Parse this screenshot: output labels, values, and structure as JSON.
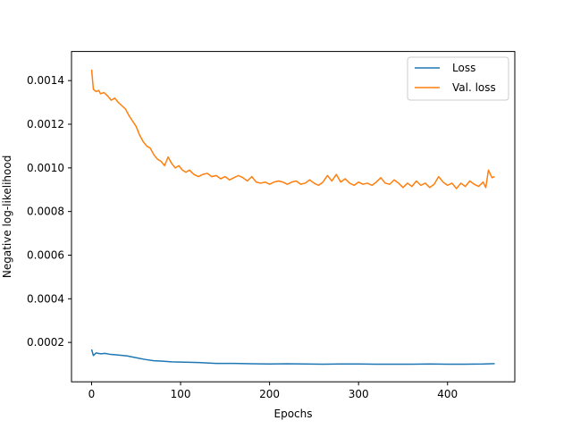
{
  "chart_data": {
    "type": "line",
    "title": "",
    "xlabel": "Epochs",
    "ylabel": "Negative log-likelihood",
    "xlim": [
      -22.6,
      475.6
    ],
    "ylim": [
      1.95e-05,
      0.0015335
    ],
    "xticks": [
      0,
      100,
      200,
      300,
      400
    ],
    "yticks": [
      0.0002,
      0.0004,
      0.0006,
      0.0008,
      0.001,
      0.0012,
      0.0014
    ],
    "ytick_labels": [
      "0.0002",
      "0.0004",
      "0.0006",
      "0.0008",
      "0.0010",
      "0.0012",
      "0.0014"
    ],
    "grid": false,
    "legend_position": "top-right",
    "series": [
      {
        "name": "Loss",
        "color": "#1f77b4",
        "x": [
          0,
          2,
          5,
          10,
          15,
          20,
          30,
          40,
          50,
          60,
          70,
          80,
          90,
          100,
          120,
          140,
          160,
          180,
          200,
          220,
          240,
          260,
          280,
          300,
          320,
          340,
          360,
          380,
          400,
          420,
          440,
          453
        ],
        "y": [
          0.000168,
          0.00014,
          0.000152,
          0.000148,
          0.00015,
          0.000146,
          0.000142,
          0.000138,
          0.00013,
          0.000122,
          0.000116,
          0.000114,
          0.000111,
          0.00011,
          0.000108,
          0.000104,
          0.000104,
          0.000102,
          0.000101,
          0.000102,
          0.000101,
          0.0001,
          0.000101,
          0.000101,
          0.0001,
          0.0001,
          0.0001,
          0.000101,
          0.0001,
          0.0001,
          0.000101,
          0.000103
        ]
      },
      {
        "name": "Val. loss",
        "color": "#ff7f0e",
        "x": [
          0,
          2,
          5,
          8,
          10,
          14,
          18,
          22,
          26,
          30,
          34,
          38,
          42,
          46,
          50,
          54,
          58,
          62,
          66,
          70,
          74,
          78,
          82,
          86,
          90,
          94,
          98,
          102,
          106,
          110,
          115,
          120,
          125,
          130,
          135,
          140,
          145,
          150,
          155,
          160,
          165,
          170,
          175,
          180,
          185,
          190,
          195,
          200,
          205,
          210,
          215,
          220,
          225,
          230,
          235,
          240,
          245,
          250,
          255,
          260,
          265,
          270,
          275,
          280,
          285,
          290,
          295,
          300,
          305,
          310,
          315,
          320,
          325,
          330,
          335,
          340,
          345,
          350,
          355,
          360,
          365,
          370,
          375,
          380,
          385,
          390,
          395,
          400,
          405,
          410,
          415,
          420,
          425,
          430,
          435,
          440,
          443,
          446,
          450,
          453
        ],
        "y": [
          0.00145,
          0.00136,
          0.00135,
          0.001355,
          0.00134,
          0.001345,
          0.00133,
          0.00131,
          0.00132,
          0.0013,
          0.001285,
          0.00127,
          0.00124,
          0.001215,
          0.00119,
          0.00115,
          0.00112,
          0.0011,
          0.00109,
          0.00106,
          0.00104,
          0.00103,
          0.00101,
          0.00105,
          0.00102,
          0.001,
          0.00101,
          0.00099,
          0.00098,
          0.00099,
          0.00097,
          0.00096,
          0.00097,
          0.000975,
          0.00096,
          0.000965,
          0.00095,
          0.00096,
          0.000945,
          0.000955,
          0.000965,
          0.000955,
          0.00094,
          0.00096,
          0.000935,
          0.00093,
          0.000935,
          0.000925,
          0.000935,
          0.00094,
          0.000935,
          0.000925,
          0.000935,
          0.00094,
          0.000925,
          0.00093,
          0.000945,
          0.00093,
          0.00092,
          0.000935,
          0.000965,
          0.00094,
          0.00097,
          0.000935,
          0.00095,
          0.00093,
          0.00092,
          0.000935,
          0.000925,
          0.00093,
          0.00092,
          0.000935,
          0.000955,
          0.00093,
          0.000925,
          0.000945,
          0.00093,
          0.00091,
          0.00093,
          0.000915,
          0.00094,
          0.00092,
          0.00093,
          0.00091,
          0.000925,
          0.00096,
          0.000935,
          0.00092,
          0.00093,
          0.000905,
          0.00093,
          0.000915,
          0.00094,
          0.000925,
          0.000915,
          0.000935,
          0.00091,
          0.00099,
          0.000955,
          0.00096
        ]
      }
    ]
  }
}
